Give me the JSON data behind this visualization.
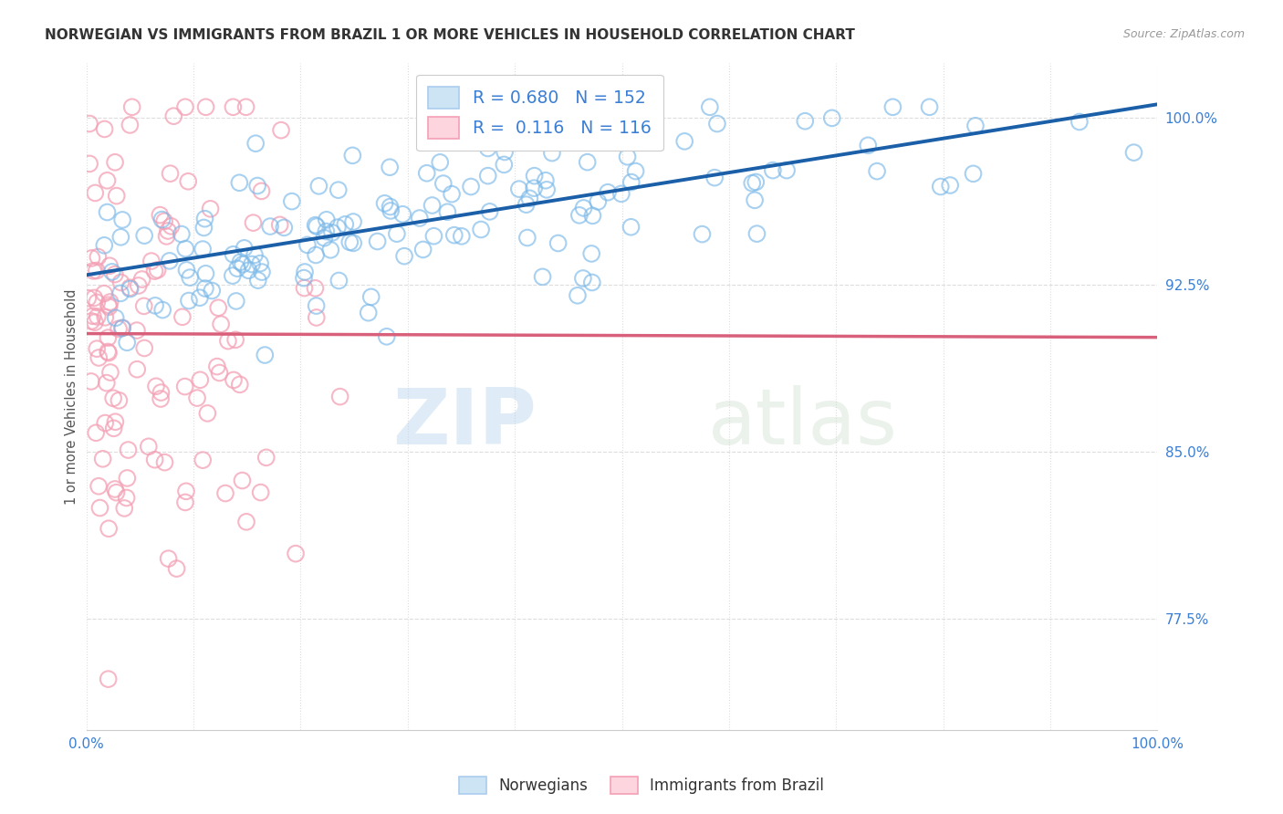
{
  "title": "NORWEGIAN VS IMMIGRANTS FROM BRAZIL 1 OR MORE VEHICLES IN HOUSEHOLD CORRELATION CHART",
  "source": "Source: ZipAtlas.com",
  "ylabel": "1 or more Vehicles in Household",
  "xlim": [
    0.0,
    1.0
  ],
  "ylim": [
    0.725,
    1.025
  ],
  "yticks": [
    0.775,
    0.85,
    0.925,
    1.0
  ],
  "ytick_labels": [
    "77.5%",
    "85.0%",
    "92.5%",
    "100.0%"
  ],
  "xticks": [
    0.0,
    0.1,
    0.2,
    0.3,
    0.4,
    0.5,
    0.6,
    0.7,
    0.8,
    0.9,
    1.0
  ],
  "xtick_labels": [
    "0.0%",
    "",
    "",
    "",
    "",
    "",
    "",
    "",
    "",
    "",
    "100.0%"
  ],
  "norwegian_color": "#7ab8e8",
  "brazil_color": "#f4a0b5",
  "norway_line_color": "#1a5fa8",
  "brazil_line_color": "#d9607a",
  "R_norwegian": 0.68,
  "N_norwegian": 152,
  "R_brazil": 0.116,
  "N_brazil": 116,
  "watermark_zip": "ZIP",
  "watermark_atlas": "atlas",
  "legend_labels": [
    "Norwegians",
    "Immigrants from Brazil"
  ],
  "background_color": "#ffffff",
  "grid_color": "#dddddd",
  "title_color": "#333333",
  "tick_label_color": "#3a7fd5",
  "norway_seed": 42,
  "brazil_seed": 99
}
